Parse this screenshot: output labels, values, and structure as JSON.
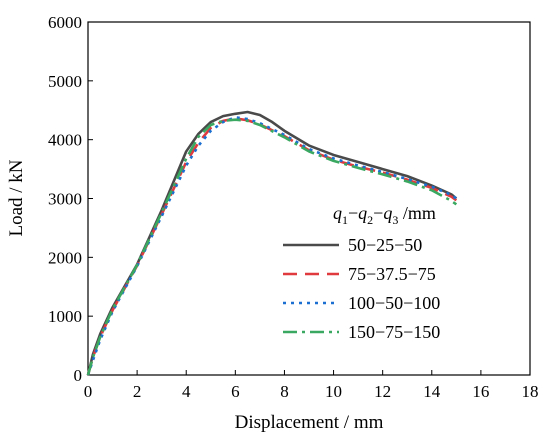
{
  "chart_data": {
    "type": "line",
    "xlabel": "Displacement / mm",
    "ylabel": "Load / kN",
    "xlim": [
      0,
      18
    ],
    "ylim": [
      0,
      6000
    ],
    "xticks": [
      0,
      2,
      4,
      6,
      8,
      10,
      12,
      14,
      16,
      18
    ],
    "yticks": [
      0,
      1000,
      2000,
      3000,
      4000,
      5000,
      6000
    ],
    "grid": false,
    "legend": {
      "placement": "bottom-right",
      "title": {
        "q1": "q",
        "sub1": "1",
        "dash1": "−",
        "q2": "q",
        "sub2": "2",
        "dash2": "−",
        "q3": "q",
        "sub3": "3",
        "unit": " /mm"
      }
    },
    "series": [
      {
        "name": "50−25−50",
        "color": "#4a4a4a",
        "style": "solid",
        "points": [
          [
            0,
            0
          ],
          [
            0.2,
            350
          ],
          [
            0.5,
            700
          ],
          [
            1.0,
            1150
          ],
          [
            2.0,
            1880
          ],
          [
            3.0,
            2800
          ],
          [
            4.0,
            3800
          ],
          [
            4.5,
            4100
          ],
          [
            5.0,
            4300
          ],
          [
            5.5,
            4400
          ],
          [
            6.0,
            4440
          ],
          [
            6.5,
            4470
          ],
          [
            7.0,
            4420
          ],
          [
            7.5,
            4300
          ],
          [
            8.0,
            4150
          ],
          [
            9.0,
            3900
          ],
          [
            10.0,
            3740
          ],
          [
            11.0,
            3620
          ],
          [
            12.0,
            3500
          ],
          [
            13.0,
            3380
          ],
          [
            14.0,
            3220
          ],
          [
            14.8,
            3070
          ],
          [
            15.0,
            3000
          ]
        ]
      },
      {
        "name": "75−37.5−75",
        "color": "#e0393e",
        "style": "dashed",
        "points": [
          [
            0,
            0
          ],
          [
            0.2,
            300
          ],
          [
            0.5,
            650
          ],
          [
            1.0,
            1100
          ],
          [
            2.0,
            1860
          ],
          [
            3.0,
            2730
          ],
          [
            4.0,
            3620
          ],
          [
            4.5,
            3950
          ],
          [
            5.0,
            4200
          ],
          [
            5.5,
            4320
          ],
          [
            6.0,
            4360
          ],
          [
            6.5,
            4330
          ],
          [
            7.0,
            4260
          ],
          [
            8.0,
            4060
          ],
          [
            9.0,
            3820
          ],
          [
            10.0,
            3660
          ],
          [
            11.0,
            3540
          ],
          [
            12.0,
            3440
          ],
          [
            13.0,
            3320
          ],
          [
            14.0,
            3180
          ],
          [
            14.8,
            3030
          ],
          [
            15.0,
            2970
          ]
        ]
      },
      {
        "name": "100−50−100",
        "color": "#1a6fd0",
        "style": "dotted",
        "points": [
          [
            0,
            0
          ],
          [
            0.2,
            250
          ],
          [
            0.5,
            600
          ],
          [
            1.0,
            1080
          ],
          [
            2.0,
            1850
          ],
          [
            3.0,
            2700
          ],
          [
            4.0,
            3560
          ],
          [
            4.5,
            3900
          ],
          [
            5.0,
            4150
          ],
          [
            5.5,
            4300
          ],
          [
            6.0,
            4380
          ],
          [
            6.5,
            4350
          ],
          [
            7.0,
            4280
          ],
          [
            8.0,
            4080
          ],
          [
            9.0,
            3840
          ],
          [
            10.0,
            3680
          ],
          [
            11.0,
            3560
          ],
          [
            12.0,
            3450
          ],
          [
            13.0,
            3330
          ],
          [
            14.0,
            3200
          ],
          [
            14.8,
            3060
          ],
          [
            15.0,
            3000
          ]
        ]
      },
      {
        "name": "150−75−150",
        "color": "#3aa860",
        "style": "dashdot",
        "points": [
          [
            0,
            0
          ],
          [
            0.2,
            300
          ],
          [
            0.5,
            650
          ],
          [
            1.0,
            1120
          ],
          [
            2.0,
            1870
          ],
          [
            3.0,
            2760
          ],
          [
            4.0,
            3680
          ],
          [
            4.5,
            4050
          ],
          [
            5.0,
            4250
          ],
          [
            5.5,
            4320
          ],
          [
            6.0,
            4340
          ],
          [
            6.5,
            4320
          ],
          [
            7.0,
            4250
          ],
          [
            8.0,
            4040
          ],
          [
            9.0,
            3800
          ],
          [
            10.0,
            3640
          ],
          [
            11.0,
            3520
          ],
          [
            12.0,
            3410
          ],
          [
            13.0,
            3290
          ],
          [
            14.0,
            3140
          ],
          [
            14.8,
            2960
          ],
          [
            15.0,
            2900
          ]
        ]
      }
    ]
  }
}
